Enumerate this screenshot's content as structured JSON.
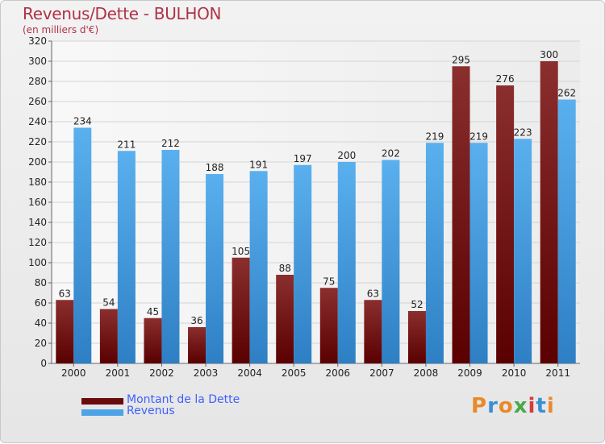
{
  "header": {
    "title": "Revenus/Dette - BULHON",
    "subtitle": "(en milliers d'€)"
  },
  "colors": {
    "debt": "#7a1a1a",
    "revenue": "#4da3e6",
    "title": "#b03246",
    "legend_text": "#4060ff"
  },
  "legend": {
    "items": [
      {
        "label": "Montant de la Dette",
        "color": "#6a0c0c"
      },
      {
        "label": "Revenus",
        "color": "#4da3e6"
      }
    ]
  },
  "logo": {
    "text": "Proxiti",
    "letter_colors": [
      "#e88a2a",
      "#3a8fd6",
      "#e88a2a",
      "#4aa84a",
      "#d63a3a",
      "#3a8fd6",
      "#e88a2a"
    ]
  },
  "chart_data": {
    "type": "bar",
    "categories": [
      "2000",
      "2001",
      "2002",
      "2003",
      "2004",
      "2005",
      "2006",
      "2007",
      "2008",
      "2009",
      "2010",
      "2011"
    ],
    "series": [
      {
        "name": "Montant de la Dette",
        "values": [
          63,
          54,
          45,
          36,
          105,
          88,
          75,
          63,
          52,
          295,
          276,
          300
        ]
      },
      {
        "name": "Revenus",
        "values": [
          234,
          211,
          212,
          188,
          191,
          197,
          200,
          202,
          219,
          219,
          223,
          262
        ]
      }
    ],
    "ylim": [
      0,
      320
    ],
    "yticks": [
      0,
      20,
      40,
      60,
      80,
      100,
      120,
      140,
      160,
      180,
      200,
      220,
      240,
      260,
      280,
      300,
      320
    ],
    "grid": true,
    "data_labels": true,
    "legend_position": "bottom-left"
  }
}
